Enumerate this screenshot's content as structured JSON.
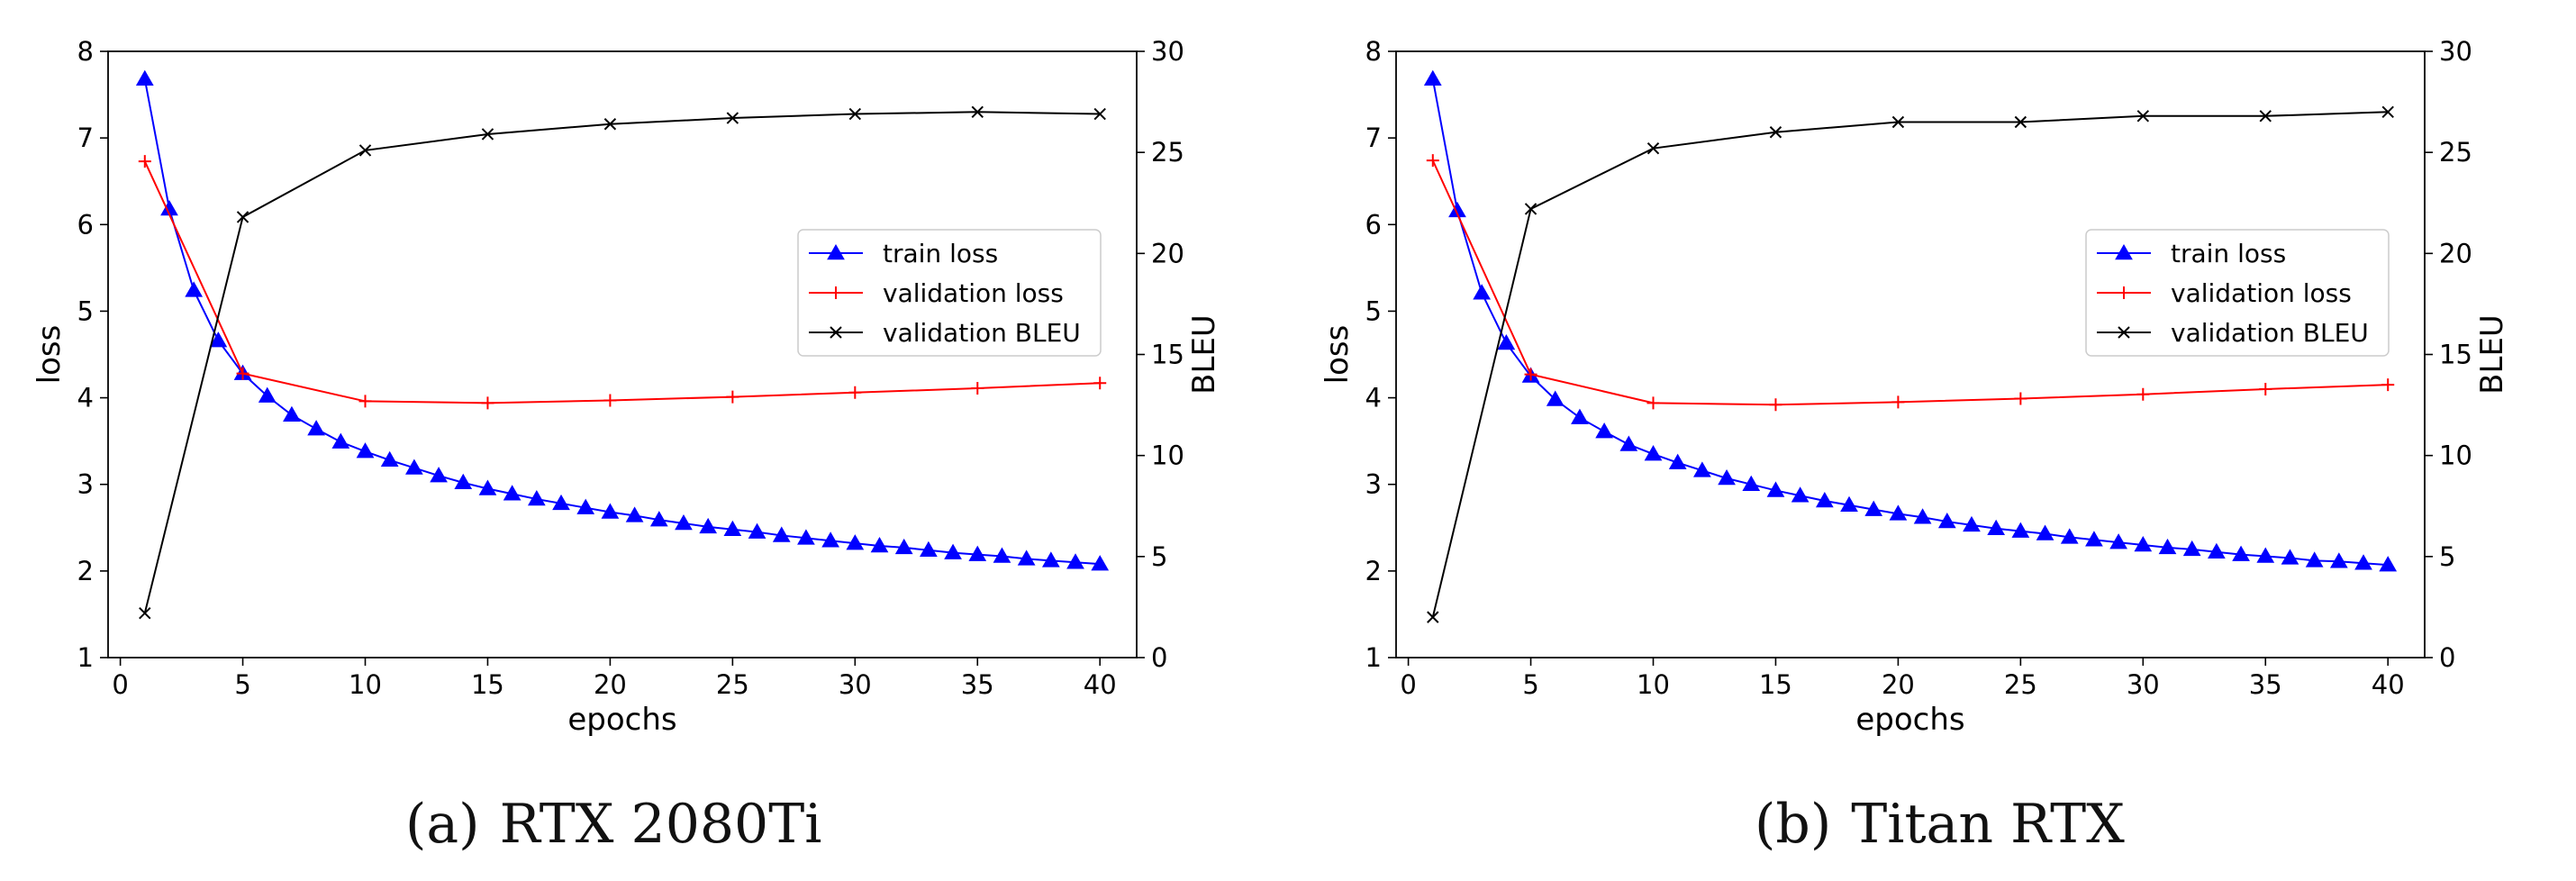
{
  "colors": {
    "train": "#0000ff",
    "val_loss": "#ff0000",
    "bleu": "#000000"
  },
  "chart_data": [
    {
      "type": "line",
      "caption_label": "(a)",
      "caption_text": "RTX 2080Ti",
      "xlabel": "epochs",
      "ylabel_left": "loss",
      "ylabel_right": "BLEU",
      "xlim": [
        -0.5,
        41.5
      ],
      "ylim_left": [
        1,
        8
      ],
      "ylim_right": [
        0,
        30
      ],
      "xticks": [
        0,
        5,
        10,
        15,
        20,
        25,
        30,
        35,
        40
      ],
      "yticks_left": [
        1,
        2,
        3,
        4,
        5,
        6,
        7,
        8
      ],
      "yticks_right": [
        0,
        5,
        10,
        15,
        20,
        25,
        30
      ],
      "legend_position": "center-right",
      "series": [
        {
          "name": "train loss",
          "axis": "left",
          "marker": "triangle",
          "color_key": "train",
          "x": [
            1,
            2,
            3,
            4,
            5,
            6,
            7,
            8,
            9,
            10,
            11,
            12,
            13,
            14,
            15,
            16,
            17,
            18,
            19,
            20,
            21,
            22,
            23,
            24,
            25,
            26,
            27,
            28,
            29,
            30,
            31,
            32,
            33,
            34,
            35,
            36,
            37,
            38,
            39,
            40
          ],
          "y": [
            7.68,
            6.18,
            5.24,
            4.66,
            4.28,
            4.02,
            3.8,
            3.64,
            3.49,
            3.38,
            3.28,
            3.19,
            3.1,
            3.02,
            2.95,
            2.89,
            2.83,
            2.78,
            2.73,
            2.68,
            2.64,
            2.59,
            2.55,
            2.51,
            2.48,
            2.45,
            2.41,
            2.38,
            2.35,
            2.32,
            2.29,
            2.27,
            2.24,
            2.21,
            2.19,
            2.17,
            2.14,
            2.12,
            2.1,
            2.08
          ]
        },
        {
          "name": "validation loss",
          "axis": "left",
          "marker": "plus",
          "color_key": "val_loss",
          "x": [
            1,
            5,
            10,
            15,
            20,
            25,
            30,
            35,
            40
          ],
          "y": [
            6.73,
            4.28,
            3.96,
            3.94,
            3.97,
            4.01,
            4.06,
            4.11,
            4.17
          ]
        },
        {
          "name": "validation BLEU",
          "axis": "right",
          "marker": "x",
          "color_key": "bleu",
          "x": [
            1,
            5,
            10,
            15,
            20,
            25,
            30,
            35,
            40
          ],
          "y": [
            2.2,
            21.8,
            25.1,
            25.9,
            26.4,
            26.7,
            26.9,
            27.0,
            26.9
          ]
        }
      ]
    },
    {
      "type": "line",
      "caption_label": "(b)",
      "caption_text": "Titan RTX",
      "xlabel": "epochs",
      "ylabel_left": "loss",
      "ylabel_right": "BLEU",
      "xlim": [
        -0.5,
        41.5
      ],
      "ylim_left": [
        1,
        8
      ],
      "ylim_right": [
        0,
        30
      ],
      "xticks": [
        0,
        5,
        10,
        15,
        20,
        25,
        30,
        35,
        40
      ],
      "yticks_left": [
        1,
        2,
        3,
        4,
        5,
        6,
        7,
        8
      ],
      "yticks_right": [
        0,
        5,
        10,
        15,
        20,
        25,
        30
      ],
      "legend_position": "center-right",
      "series": [
        {
          "name": "train loss",
          "axis": "left",
          "marker": "triangle",
          "color_key": "train",
          "x": [
            1,
            2,
            3,
            4,
            5,
            6,
            7,
            8,
            9,
            10,
            11,
            12,
            13,
            14,
            15,
            16,
            17,
            18,
            19,
            20,
            21,
            22,
            23,
            24,
            25,
            26,
            27,
            28,
            29,
            30,
            31,
            32,
            33,
            34,
            35,
            36,
            37,
            38,
            39,
            40
          ],
          "y": [
            7.68,
            6.16,
            5.21,
            4.63,
            4.25,
            3.98,
            3.77,
            3.61,
            3.46,
            3.35,
            3.25,
            3.16,
            3.07,
            3.0,
            2.93,
            2.87,
            2.81,
            2.76,
            2.71,
            2.66,
            2.62,
            2.57,
            2.53,
            2.49,
            2.46,
            2.43,
            2.39,
            2.36,
            2.33,
            2.3,
            2.27,
            2.25,
            2.22,
            2.19,
            2.17,
            2.15,
            2.12,
            2.11,
            2.09,
            2.07
          ]
        },
        {
          "name": "validation loss",
          "axis": "left",
          "marker": "plus",
          "color_key": "val_loss",
          "x": [
            1,
            5,
            10,
            15,
            20,
            25,
            30,
            35,
            40
          ],
          "y": [
            6.74,
            4.27,
            3.94,
            3.92,
            3.95,
            3.99,
            4.04,
            4.1,
            4.15
          ]
        },
        {
          "name": "validation BLEU",
          "axis": "right",
          "marker": "x",
          "color_key": "bleu",
          "x": [
            1,
            5,
            10,
            15,
            20,
            25,
            30,
            35,
            40
          ],
          "y": [
            2.0,
            22.2,
            25.2,
            26.0,
            26.5,
            26.5,
            26.8,
            26.8,
            27.0
          ]
        }
      ]
    }
  ]
}
